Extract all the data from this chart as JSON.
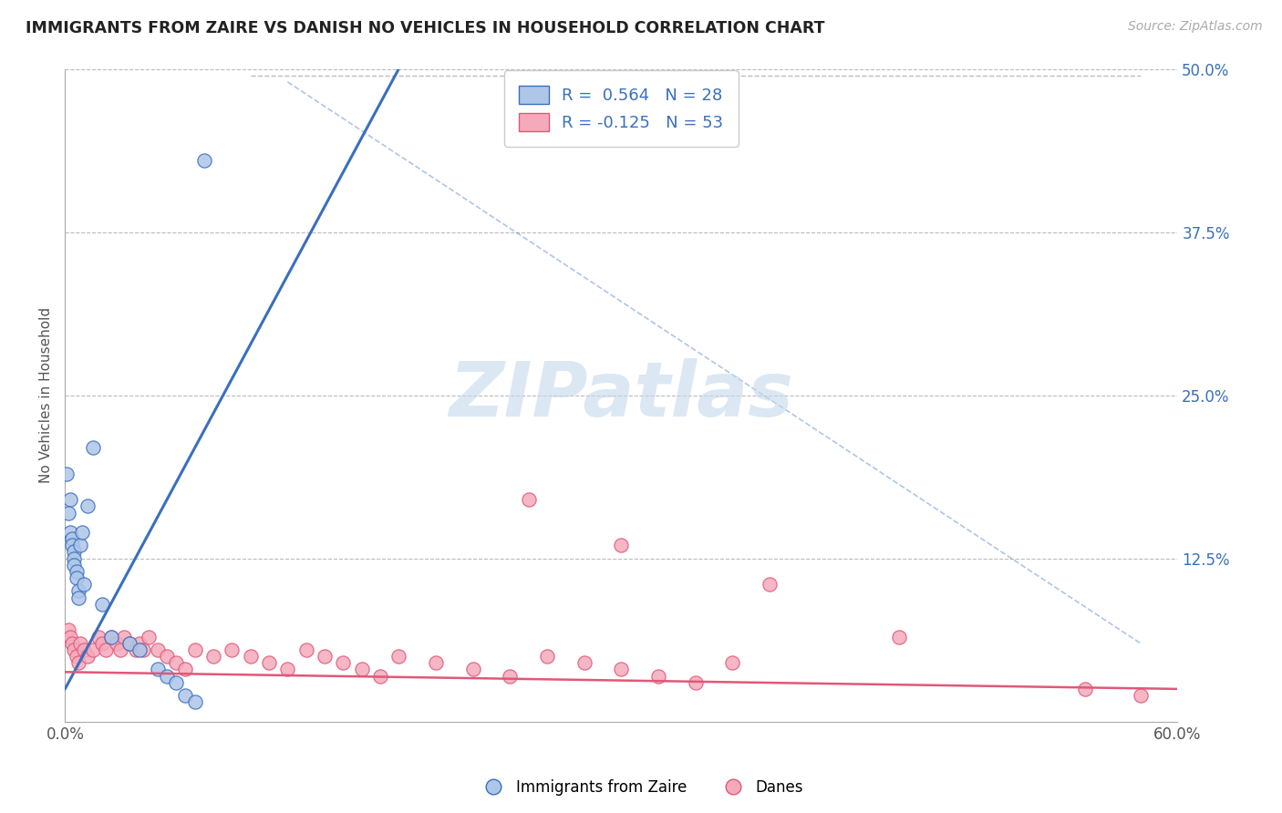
{
  "title": "IMMIGRANTS FROM ZAIRE VS DANISH NO VEHICLES IN HOUSEHOLD CORRELATION CHART",
  "source_text": "Source: ZipAtlas.com",
  "ylabel": "No Vehicles in Household",
  "xlim": [
    0.0,
    0.6
  ],
  "ylim": [
    0.0,
    0.5
  ],
  "yticks_right": [
    0.0,
    0.125,
    0.25,
    0.375,
    0.5
  ],
  "ytick_labels_right": [
    "",
    "12.5%",
    "25.0%",
    "37.5%",
    "50.0%"
  ],
  "xtick_positions": [
    0.0,
    0.1,
    0.2,
    0.3,
    0.4,
    0.5,
    0.6
  ],
  "xtick_labels": [
    "0.0%",
    "",
    "",
    "",
    "",
    "",
    "60.0%"
  ],
  "legend_label1": "Immigrants from Zaire",
  "legend_label2": "Danes",
  "blue_color": "#aec6e8",
  "pink_color": "#f4aabb",
  "blue_line_color": "#3a6fbd",
  "pink_line_color": "#e05878",
  "title_color": "#222222",
  "watermark_color": "#c5d8ee",
  "grid_color": "#bbbbbb",
  "blue_line_x0": 0.0,
  "blue_line_x1": 0.18,
  "blue_line_y0": 0.025,
  "blue_line_y1": 0.5,
  "dashed_line_x0": 0.12,
  "dashed_line_y0": 0.5,
  "dashed_line_x1": 0.6,
  "dashed_line_y1": 0.5,
  "pink_line_x0": 0.0,
  "pink_line_x1": 0.6,
  "pink_line_y0": 0.038,
  "pink_line_y1": 0.025,
  "blue_scatter": [
    [
      0.003,
      0.17
    ],
    [
      0.003,
      0.145
    ],
    [
      0.004,
      0.14
    ],
    [
      0.004,
      0.135
    ],
    [
      0.005,
      0.13
    ],
    [
      0.005,
      0.125
    ],
    [
      0.005,
      0.12
    ],
    [
      0.006,
      0.115
    ],
    [
      0.006,
      0.11
    ],
    [
      0.007,
      0.1
    ],
    [
      0.007,
      0.095
    ],
    [
      0.008,
      0.135
    ],
    [
      0.009,
      0.145
    ],
    [
      0.01,
      0.105
    ],
    [
      0.012,
      0.165
    ],
    [
      0.015,
      0.21
    ],
    [
      0.02,
      0.09
    ],
    [
      0.025,
      0.065
    ],
    [
      0.035,
      0.06
    ],
    [
      0.04,
      0.055
    ],
    [
      0.05,
      0.04
    ],
    [
      0.055,
      0.035
    ],
    [
      0.06,
      0.03
    ],
    [
      0.065,
      0.02
    ],
    [
      0.07,
      0.015
    ],
    [
      0.001,
      0.19
    ],
    [
      0.002,
      0.16
    ],
    [
      0.075,
      0.43
    ]
  ],
  "pink_scatter": [
    [
      0.002,
      0.07
    ],
    [
      0.003,
      0.065
    ],
    [
      0.004,
      0.06
    ],
    [
      0.005,
      0.055
    ],
    [
      0.006,
      0.05
    ],
    [
      0.007,
      0.045
    ],
    [
      0.008,
      0.06
    ],
    [
      0.01,
      0.055
    ],
    [
      0.012,
      0.05
    ],
    [
      0.015,
      0.055
    ],
    [
      0.018,
      0.065
    ],
    [
      0.02,
      0.06
    ],
    [
      0.022,
      0.055
    ],
    [
      0.025,
      0.065
    ],
    [
      0.028,
      0.06
    ],
    [
      0.03,
      0.055
    ],
    [
      0.032,
      0.065
    ],
    [
      0.035,
      0.06
    ],
    [
      0.038,
      0.055
    ],
    [
      0.04,
      0.06
    ],
    [
      0.042,
      0.055
    ],
    [
      0.045,
      0.065
    ],
    [
      0.05,
      0.055
    ],
    [
      0.055,
      0.05
    ],
    [
      0.06,
      0.045
    ],
    [
      0.065,
      0.04
    ],
    [
      0.07,
      0.055
    ],
    [
      0.08,
      0.05
    ],
    [
      0.09,
      0.055
    ],
    [
      0.1,
      0.05
    ],
    [
      0.11,
      0.045
    ],
    [
      0.12,
      0.04
    ],
    [
      0.13,
      0.055
    ],
    [
      0.14,
      0.05
    ],
    [
      0.15,
      0.045
    ],
    [
      0.16,
      0.04
    ],
    [
      0.17,
      0.035
    ],
    [
      0.18,
      0.05
    ],
    [
      0.2,
      0.045
    ],
    [
      0.22,
      0.04
    ],
    [
      0.24,
      0.035
    ],
    [
      0.26,
      0.05
    ],
    [
      0.28,
      0.045
    ],
    [
      0.3,
      0.04
    ],
    [
      0.32,
      0.035
    ],
    [
      0.34,
      0.03
    ],
    [
      0.36,
      0.045
    ],
    [
      0.25,
      0.17
    ],
    [
      0.3,
      0.135
    ],
    [
      0.38,
      0.105
    ],
    [
      0.45,
      0.065
    ],
    [
      0.55,
      0.025
    ],
    [
      0.58,
      0.02
    ]
  ],
  "dpi": 100,
  "figsize": [
    14.06,
    8.92
  ]
}
